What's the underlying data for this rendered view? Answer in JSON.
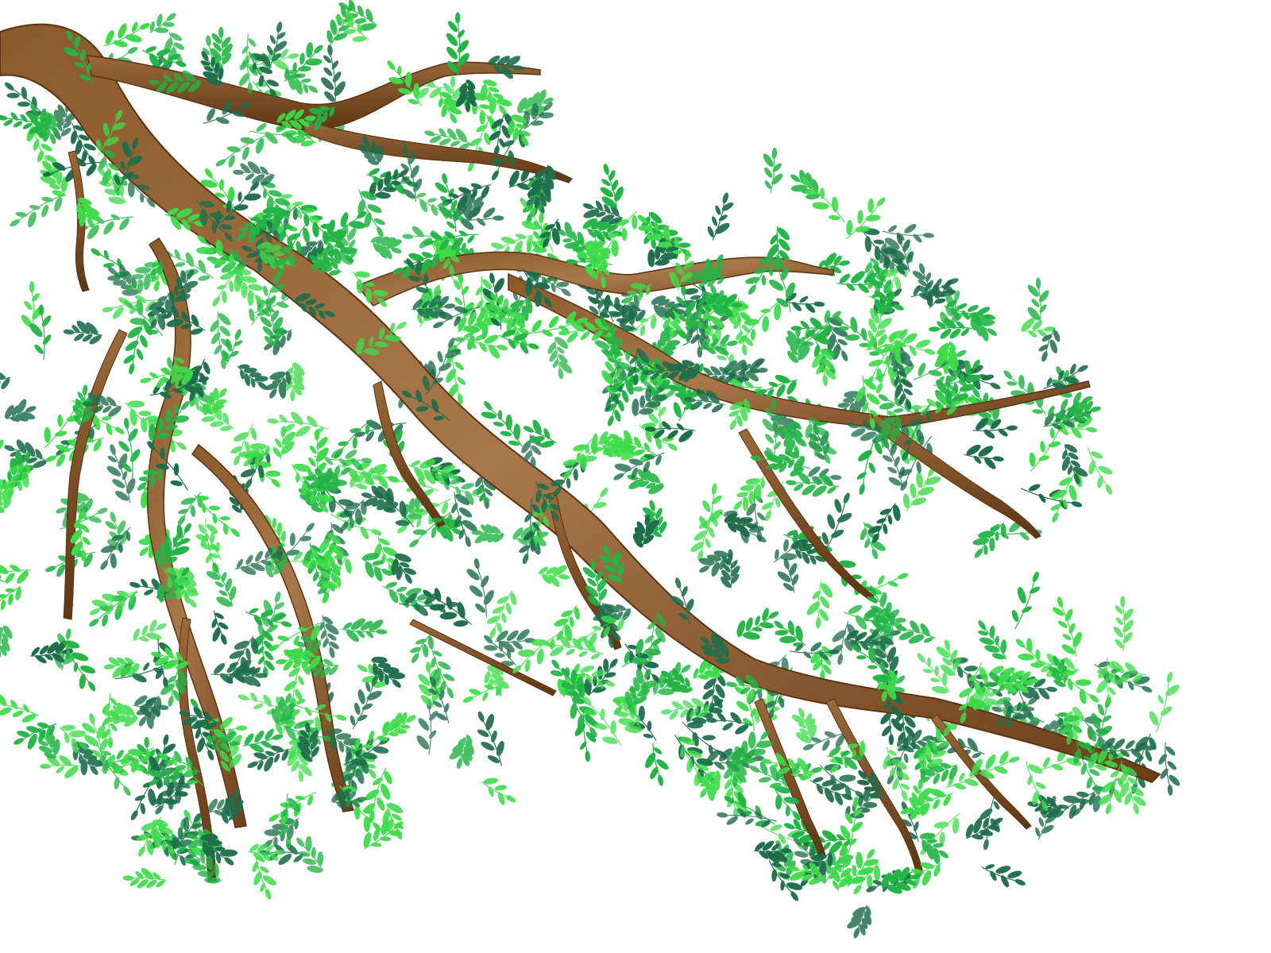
{
  "image": {
    "subject": "tree-branch-with-leaves",
    "colors": {
      "background": "#ffffff",
      "bark_dark": "#6b3f1a",
      "bark_mid": "#8a5a2b",
      "bark_light": "#a9784a",
      "leaf_light": "#3ddc4a",
      "leaf_mid": "#22b544",
      "leaf_dark": "#1e6e4c"
    }
  }
}
